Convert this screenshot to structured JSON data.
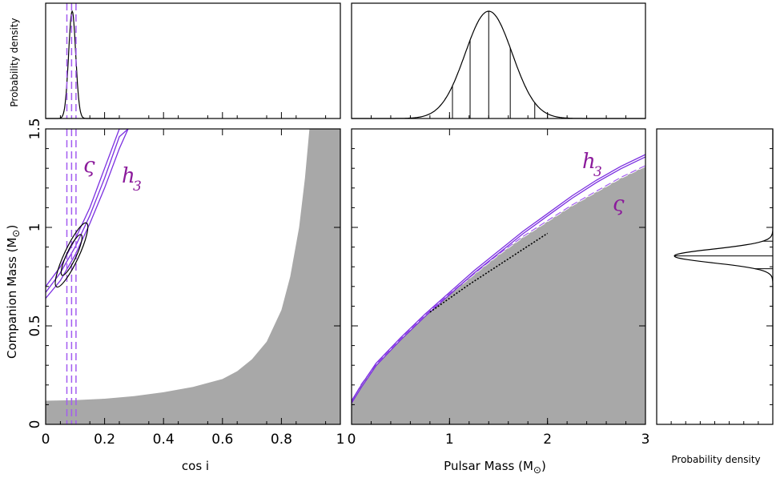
{
  "colors": {
    "shade": "#a8a8a8",
    "purple": "#7b2fe0",
    "purple_dash": "#a35cf0",
    "label": "#8b1a9b",
    "ink": "#000000"
  },
  "labels": {
    "ylabel_main": "Companion Mass (M",
    "xlabel_cosi": "cos i",
    "xlabel_mp": "Pulsar Mass (M",
    "ylabel_top": "Probability density",
    "xlabel_right": "Probability density",
    "sun_symbol": "⊙",
    "h3_main": "h",
    "h3_sub": "3",
    "varsigma": "ς"
  },
  "chart_data": [
    {
      "name": "cosi_vs_mc",
      "type": "scatter",
      "xlabel": "cos i",
      "ylabel": "Companion Mass (M⊙)",
      "xlim": [
        0,
        1
      ],
      "ylim": [
        0,
        1.5
      ],
      "x_ticks": [
        0,
        0.2,
        0.4,
        0.6,
        0.8,
        1
      ],
      "x_tick_labels": [
        "0",
        "0.2",
        "0.4",
        "0.6",
        "0.8",
        "1"
      ],
      "y_ticks": [
        0,
        0.5,
        1,
        1.5
      ],
      "y_tick_labels": [
        "0",
        "0.5",
        "1",
        "1.5"
      ],
      "excluded_region_edge": {
        "cosi": [
          0,
          0.1,
          0.2,
          0.3,
          0.4,
          0.5,
          0.6,
          0.65,
          0.7,
          0.75,
          0.8,
          0.83,
          0.86,
          0.88,
          0.895
        ],
        "mc": [
          0.12,
          0.123,
          0.13,
          0.143,
          0.163,
          0.19,
          0.23,
          0.27,
          0.33,
          0.42,
          0.58,
          0.75,
          1.0,
          1.25,
          1.5
        ]
      },
      "h3_band_cosi_mc": [
        0.0,
        0.05,
        0.1,
        0.15,
        0.2,
        0.25,
        0.28
      ],
      "h3_band_mc": [
        [
          0.64,
          0.73,
          0.86,
          1.02,
          1.2,
          1.4,
          1.5
        ],
        [
          0.67,
          0.77,
          0.9,
          1.06,
          1.25,
          1.46,
          1.5
        ],
        [
          0.7,
          0.8,
          0.94,
          1.1,
          1.3,
          1.5,
          1.5
        ]
      ],
      "varsigma_cosi": [
        0.072,
        0.088,
        0.103
      ],
      "contours": {
        "center_cosi": 0.088,
        "center_mc": 0.86,
        "inner_extent": [
          0.08,
          0.95
        ],
        "outer_extent": [
          0.07,
          1.05
        ]
      },
      "annotations": [
        "ς",
        "h3"
      ]
    },
    {
      "name": "mp_vs_mc",
      "type": "area",
      "xlabel": "Pulsar Mass (M⊙)",
      "xlim": [
        0,
        3
      ],
      "ylim": [
        0,
        1.5
      ],
      "x_ticks": [
        0,
        1,
        2,
        3
      ],
      "x_tick_labels": [
        "0",
        "1",
        "2",
        "3"
      ],
      "excluded_region_edge": {
        "mp": [
          0,
          0.1,
          0.25,
          0.5,
          0.75,
          1.0,
          1.25,
          1.5,
          1.75,
          2.0,
          2.25,
          2.5,
          2.75,
          3.0
        ],
        "mc": [
          0.11,
          0.2,
          0.3,
          0.43,
          0.55,
          0.66,
          0.76,
          0.86,
          0.95,
          1.03,
          1.11,
          1.18,
          1.25,
          1.31
        ]
      },
      "h3_curve": {
        "mp": [
          0,
          0.1,
          0.25,
          0.5,
          0.75,
          1.0,
          1.25,
          1.5,
          1.75,
          2.0,
          2.25,
          2.5,
          2.75,
          3.0
        ],
        "mc": [
          0.12,
          0.2,
          0.31,
          0.44,
          0.56,
          0.67,
          0.78,
          0.88,
          0.98,
          1.07,
          1.16,
          1.24,
          1.31,
          1.37
        ]
      },
      "annotations": [
        "h3",
        "ς"
      ]
    },
    {
      "name": "cosi_pdf",
      "type": "line",
      "ylabel": "Probability density",
      "xlim": [
        0,
        1
      ],
      "peak_cosi": 0.09,
      "width": 0.012,
      "varsigma_cosi": [
        0.072,
        0.088,
        0.103
      ]
    },
    {
      "name": "mp_pdf",
      "type": "line",
      "xlim": [
        0,
        3
      ],
      "peak_mp": 1.4,
      "sigma": 0.24,
      "marker_mp": [
        1.03,
        1.21,
        1.4,
        1.62,
        1.87
      ]
    },
    {
      "name": "mc_pdf",
      "type": "line",
      "xlabel": "Probability density",
      "ylim": [
        0,
        1.5
      ],
      "peak_mc": 0.855,
      "sigma": 0.035,
      "marker_mc": [
        0.74,
        0.79,
        0.855,
        0.93,
        1.02
      ]
    }
  ]
}
